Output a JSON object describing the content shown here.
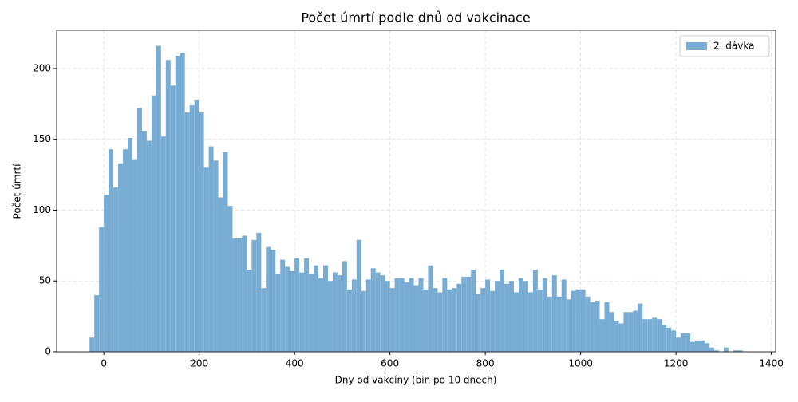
{
  "chart_data": {
    "type": "histogram",
    "title": "Počet úmrtí podle dnů od vakcinace",
    "x_label": "Dny od vakcíny (bin po 10 dnech)",
    "y_label": "Počet úmrtí",
    "bins": [
      -30,
      -20,
      -10,
      0,
      10,
      20,
      30,
      40,
      50,
      60,
      70,
      80,
      90,
      100,
      110,
      120,
      130,
      140,
      150,
      160,
      170,
      180,
      190,
      200,
      210,
      220,
      230,
      240,
      250,
      260,
      270,
      280,
      290,
      300,
      310,
      320,
      330,
      340,
      350,
      360,
      370,
      380,
      390,
      400,
      410,
      420,
      430,
      440,
      450,
      460,
      470,
      480,
      490,
      500,
      510,
      520,
      530,
      540,
      550,
      560,
      570,
      580,
      590,
      600,
      610,
      620,
      630,
      640,
      650,
      660,
      670,
      680,
      690,
      700,
      710,
      720,
      730,
      740,
      750,
      760,
      770,
      780,
      790,
      800,
      810,
      820,
      830,
      840,
      850,
      860,
      870,
      880,
      890,
      900,
      910,
      920,
      930,
      940,
      950,
      960,
      970,
      980,
      990,
      1000,
      1010,
      1020,
      1030,
      1040,
      1050,
      1060,
      1070,
      1080,
      1090,
      1100,
      1110,
      1120,
      1130,
      1140,
      1150,
      1160,
      1170,
      1180,
      1190,
      1200,
      1210,
      1220,
      1230,
      1240,
      1250,
      1260,
      1270,
      1280,
      1290,
      1300,
      1310,
      1320,
      1330,
      1340
    ],
    "series": [
      {
        "name": "2. dávka",
        "color": "#79acd3",
        "values": [
          10,
          40,
          88,
          111,
          143,
          116,
          133,
          143,
          151,
          136,
          172,
          156,
          149,
          181,
          216,
          152,
          206,
          188,
          209,
          211,
          169,
          174,
          178,
          169,
          130,
          145,
          135,
          109,
          141,
          103,
          80,
          80,
          82,
          58,
          79,
          84,
          45,
          74,
          72,
          55,
          65,
          60,
          57,
          66,
          56,
          66,
          55,
          61,
          52,
          61,
          50,
          56,
          54,
          64,
          44,
          51,
          79,
          43,
          51,
          59,
          56,
          54,
          50,
          45,
          52,
          52,
          49,
          52,
          47,
          52,
          44,
          61,
          45,
          42,
          52,
          44,
          45,
          48,
          53,
          53,
          58,
          41,
          45,
          51,
          43,
          50,
          58,
          48,
          50,
          42,
          52,
          50,
          42,
          58,
          44,
          52,
          39,
          54,
          39,
          51,
          37,
          43,
          44,
          44,
          39,
          35,
          36,
          23,
          35,
          28,
          22,
          20,
          28,
          28,
          29,
          34,
          23,
          23,
          24,
          23,
          19,
          17,
          15,
          10,
          13,
          13,
          7,
          8,
          8,
          6,
          3,
          1,
          0,
          3,
          0,
          1,
          1
        ]
      }
    ],
    "xlim": [
      -99,
      1409
    ],
    "ylim": [
      0,
      227
    ],
    "xticks": [
      0,
      200,
      400,
      600,
      800,
      1000,
      1200,
      1400
    ],
    "yticks": [
      0,
      50,
      100,
      150,
      200
    ],
    "grid": true,
    "legend": "upper right"
  }
}
